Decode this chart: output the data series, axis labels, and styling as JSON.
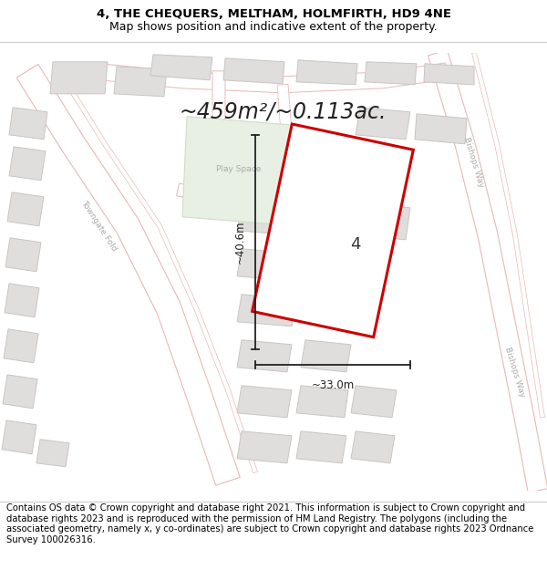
{
  "title_line1": "4, THE CHEQUERS, MELTHAM, HOLMFIRTH, HD9 4NE",
  "title_line2": "Map shows position and indicative extent of the property.",
  "area_text": "~459m²/~0.113ac.",
  "dim_width": "~33.0m",
  "dim_height": "~40.6m",
  "plot_number": "4",
  "footer_text": "Contains OS data © Crown copyright and database right 2021. This information is subject to Crown copyright and database rights 2023 and is reproduced with the permission of HM Land Registry. The polygons (including the associated geometry, namely x, y co-ordinates) are subject to Crown copyright and database rights 2023 Ordnance Survey 100026316.",
  "map_bg": "#f5f3f0",
  "road_fill": "#ffffff",
  "road_outline": "#e8b8b8",
  "building_fill": "#e0dedd",
  "building_outline": "#c8c5c2",
  "green_fill": "#e8f0e4",
  "green_outline": "#d0ddc8",
  "plot_color": "#cc0000",
  "dim_color": "#222222",
  "title_fs": 9.5,
  "area_fs": 17,
  "dim_fs": 8.5,
  "label_fs": 13,
  "footer_fs": 7.2,
  "road_label_color": "#aaaaaa",
  "road_label_fs": 6.5
}
